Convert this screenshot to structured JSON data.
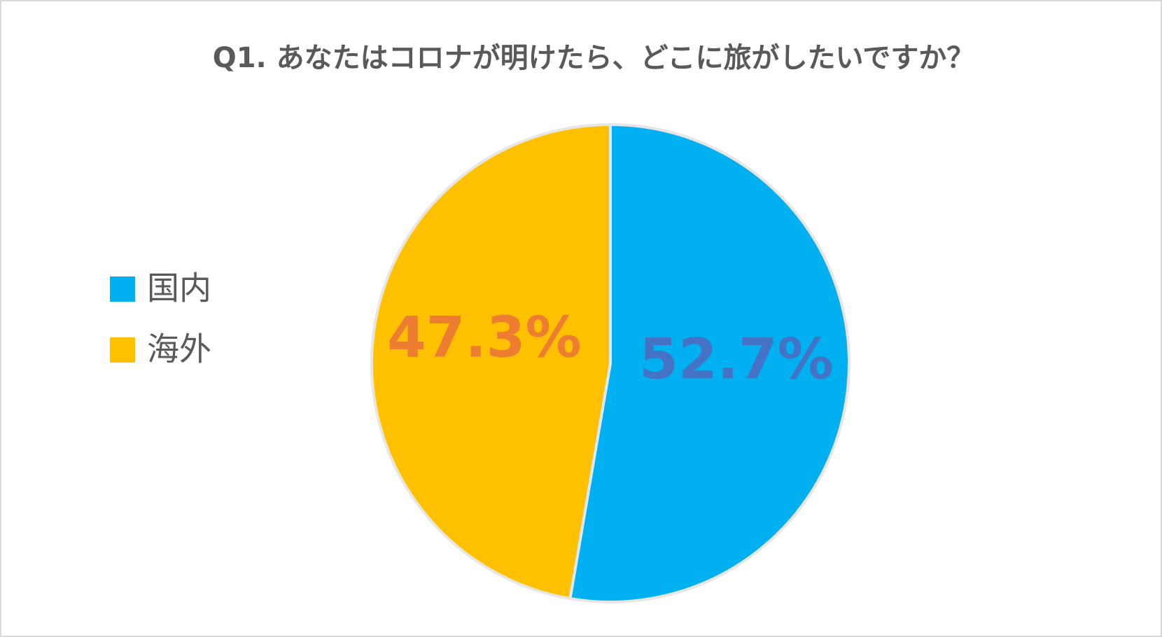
{
  "chart_data": {
    "type": "pie",
    "title": "Q1. あなたはコロナが明けたら、どこに旅がしたいですか？",
    "categories": [
      "国内",
      "海外"
    ],
    "values": [
      52.7,
      47.3
    ],
    "value_labels": [
      "52.7%",
      "47.3%"
    ],
    "colors": [
      "#00b0f0",
      "#ffc000"
    ],
    "value_label_colors": [
      "#4472c4",
      "#ed7d31"
    ],
    "legend": "left"
  }
}
